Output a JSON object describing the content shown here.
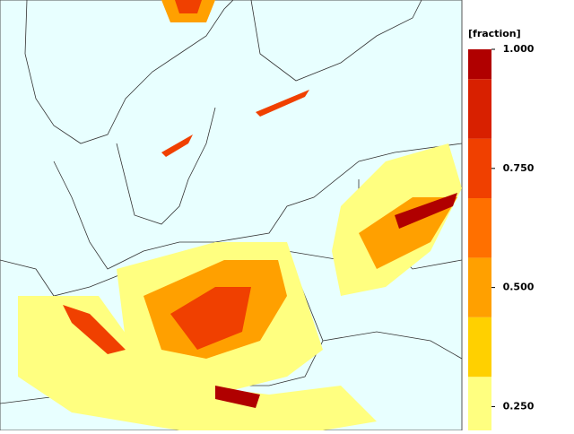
{
  "colorbar": {
    "label": "[fraction]",
    "lim": [
      0.2,
      1.0
    ],
    "ticks": [
      {
        "value": 1.0,
        "label": "1.000"
      },
      {
        "value": 0.75,
        "label": "0.750"
      },
      {
        "value": 0.5,
        "label": "0.500"
      },
      {
        "value": 0.25,
        "label": "0.250"
      }
    ],
    "bounds": [
      0.2,
      0.3125,
      0.4375,
      0.5625,
      0.6875,
      0.8125,
      0.9375,
      1.0
    ],
    "colors": [
      "#ffff80",
      "#ffd000",
      "#ffa000",
      "#ff7000",
      "#f04000",
      "#d82000",
      "#b00000"
    ]
  }
}
